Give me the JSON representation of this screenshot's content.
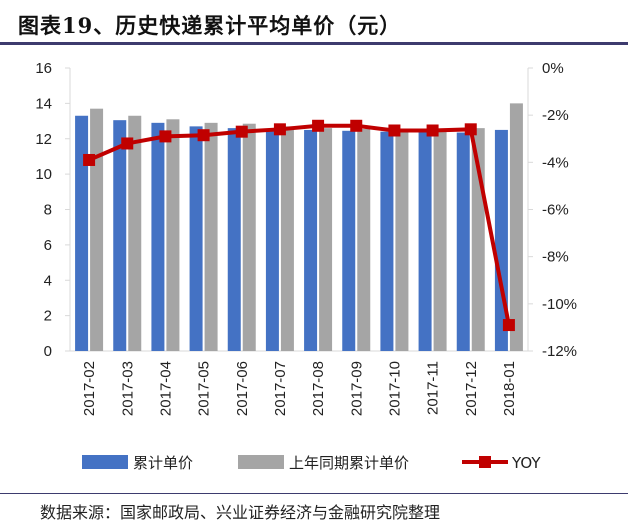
{
  "title": "图表19、历史快递累计平均单价（元）",
  "source": "数据来源：国家邮政局、兴业证券经济与金融研究院整理",
  "chart_data": {
    "type": "bar+line",
    "categories": [
      "2017-02",
      "2017-03",
      "2017-04",
      "2017-05",
      "2017-06",
      "2017-07",
      "2017-08",
      "2017-09",
      "2017-10",
      "2017-11",
      "2017-12",
      "2018-01"
    ],
    "series": [
      {
        "name": "累计单价",
        "type": "bar",
        "axis": "left",
        "color": "#4472c4",
        "values": [
          13.3,
          13.05,
          12.9,
          12.7,
          12.6,
          12.55,
          12.5,
          12.45,
          12.4,
          12.4,
          12.35,
          12.5
        ]
      },
      {
        "name": "上年同期累计单价",
        "type": "bar",
        "axis": "left",
        "color": "#a5a5a5",
        "values": [
          13.7,
          13.3,
          13.1,
          12.9,
          12.85,
          12.7,
          12.6,
          12.55,
          12.5,
          12.5,
          12.6,
          14.0
        ]
      },
      {
        "name": "YOY",
        "type": "line",
        "axis": "right",
        "color": "#c00000",
        "values": [
          -3.9,
          -3.2,
          -2.9,
          -2.85,
          -2.7,
          -2.6,
          -2.45,
          -2.45,
          -2.65,
          -2.65,
          -2.6,
          -10.9
        ]
      }
    ],
    "ylim_left": [
      0,
      16
    ],
    "yticks_left": [
      "0",
      "2",
      "4",
      "6",
      "8",
      "10",
      "12",
      "14",
      "16"
    ],
    "ylim_right": [
      -12,
      0
    ],
    "yticks_right": [
      "-12%",
      "-10%",
      "-8%",
      "-6%",
      "-4%",
      "-2%",
      "0%"
    ],
    "legend": "bottom",
    "grid": false
  }
}
